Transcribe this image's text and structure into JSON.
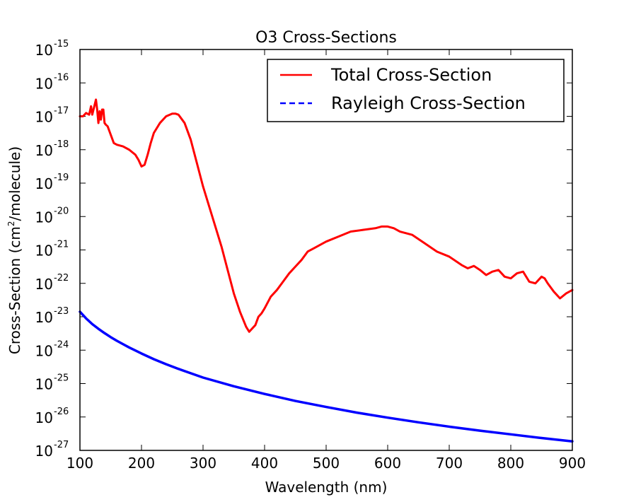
{
  "chart_data": {
    "type": "line",
    "title": "O3 Cross-Sections",
    "xlabel": "Wavelength (nm)",
    "ylabel": {
      "prefix": "Cross-Section (cm",
      "superscript": "2",
      "suffix": "/molecule)"
    },
    "xlim": [
      100,
      900
    ],
    "ylim_exponent": [
      -27,
      -15
    ],
    "yscale": "log",
    "x_ticks": [
      "100",
      "200",
      "300",
      "400",
      "500",
      "600",
      "700",
      "800",
      "900"
    ],
    "y_tick_base": "10",
    "y_ticks_exponents": [
      "-27",
      "-26",
      "-25",
      "-24",
      "-23",
      "-22",
      "-21",
      "-20",
      "-19",
      "-18",
      "-17",
      "-16",
      "-15"
    ],
    "legend_position": "top-right",
    "series": [
      {
        "name": "Total Cross-Section",
        "color": "#ff0000",
        "style": "solid",
        "x": [
          100,
          105,
          110,
          115,
          118,
          120,
          122,
          124,
          126,
          128,
          130,
          132,
          134,
          136,
          138,
          140,
          142,
          145,
          150,
          155,
          160,
          170,
          180,
          190,
          195,
          200,
          205,
          210,
          215,
          220,
          230,
          240,
          250,
          255,
          260,
          270,
          280,
          290,
          300,
          310,
          320,
          330,
          340,
          350,
          360,
          370,
          375,
          380,
          385,
          390,
          395,
          400,
          410,
          420,
          430,
          440,
          450,
          460,
          470,
          480,
          490,
          500,
          520,
          540,
          560,
          580,
          590,
          600,
          610,
          620,
          640,
          660,
          680,
          700,
          720,
          730,
          740,
          750,
          760,
          770,
          780,
          790,
          800,
          810,
          820,
          830,
          840,
          850,
          855,
          860,
          870,
          880,
          890,
          900
        ],
        "y_log10": [
          -17.0,
          -17.0,
          -16.9,
          -16.95,
          -16.7,
          -16.95,
          -16.8,
          -16.65,
          -16.5,
          -16.8,
          -17.2,
          -16.85,
          -17.1,
          -16.8,
          -16.8,
          -17.2,
          -17.25,
          -17.3,
          -17.55,
          -17.8,
          -17.85,
          -17.9,
          -18.0,
          -18.15,
          -18.3,
          -18.5,
          -18.45,
          -18.15,
          -17.8,
          -17.5,
          -17.2,
          -17.0,
          -16.92,
          -16.92,
          -16.95,
          -17.2,
          -17.7,
          -18.4,
          -19.1,
          -19.7,
          -20.3,
          -20.9,
          -21.6,
          -22.3,
          -22.85,
          -23.3,
          -23.45,
          -23.35,
          -23.25,
          -23.0,
          -22.9,
          -22.75,
          -22.4,
          -22.2,
          -21.95,
          -21.7,
          -21.5,
          -21.3,
          -21.05,
          -20.95,
          -20.85,
          -20.75,
          -20.6,
          -20.45,
          -20.4,
          -20.35,
          -20.3,
          -20.3,
          -20.35,
          -20.45,
          -20.55,
          -20.8,
          -21.05,
          -21.2,
          -21.45,
          -21.55,
          -21.48,
          -21.6,
          -21.75,
          -21.65,
          -21.6,
          -21.8,
          -21.85,
          -21.7,
          -21.65,
          -21.95,
          -22.0,
          -21.8,
          -21.85,
          -22.0,
          -22.25,
          -22.45,
          -22.3,
          -22.2
        ]
      },
      {
        "name": "Rayleigh Cross-Section",
        "color": "#0000ff",
        "style": "dashed",
        "x": [
          100,
          110,
          120,
          130,
          140,
          150,
          160,
          170,
          180,
          190,
          200,
          220,
          240,
          260,
          280,
          300,
          350,
          400,
          450,
          500,
          550,
          600,
          650,
          700,
          750,
          800,
          850,
          900
        ],
        "y_log10": [
          -22.85,
          -23.05,
          -23.22,
          -23.36,
          -23.49,
          -23.61,
          -23.72,
          -23.82,
          -23.92,
          -24.01,
          -24.1,
          -24.27,
          -24.42,
          -24.56,
          -24.69,
          -24.82,
          -25.08,
          -25.31,
          -25.52,
          -25.7,
          -25.87,
          -26.02,
          -26.16,
          -26.29,
          -26.41,
          -26.52,
          -26.63,
          -26.73
        ]
      }
    ]
  }
}
